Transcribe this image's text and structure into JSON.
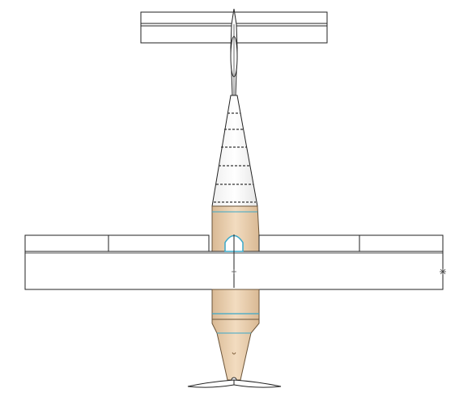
{
  "view": {
    "projection": "top",
    "background": "#ffffff"
  },
  "model": {
    "parts": [
      {
        "name": "horizontal-stabilizer",
        "finish": "white",
        "outline": "#222222"
      },
      {
        "name": "tail-boom",
        "finish": "white",
        "outline": "#222222"
      },
      {
        "name": "rear-fuselage",
        "finish": "white",
        "outline": "#222222"
      },
      {
        "name": "main-wing",
        "finish": "white",
        "outline": "#222222",
        "sections_per_side": 2
      },
      {
        "name": "center-fuselage",
        "finish": "balsa",
        "color": "#e8cfae"
      },
      {
        "name": "nose-cone",
        "finish": "balsa",
        "color": "#e8cfae"
      },
      {
        "name": "propeller",
        "finish": "white",
        "outline": "#222222"
      }
    ],
    "accent_color": "#3aa8c9"
  }
}
